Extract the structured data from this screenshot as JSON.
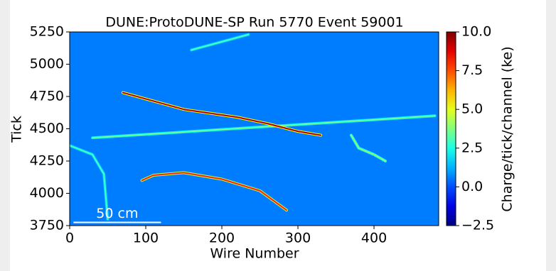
{
  "chart_data": {
    "type": "heatmap",
    "title": "DUNE:ProtoDUNE-SP Run 5770 Event 59001",
    "x_label": "Wire Number",
    "y_label": "Tick",
    "colorbar_label": "Charge/tick/channel (ke)",
    "xlim": [
      0,
      485
    ],
    "xticks": [
      0,
      100,
      200,
      300,
      400
    ],
    "ylim": [
      3750,
      5250
    ],
    "yticks": [
      3750,
      4000,
      4250,
      4500,
      4750,
      5000,
      5250
    ],
    "clim": [
      -2.5,
      10.0
    ],
    "cticks": [
      {
        "value": -2.5,
        "label": "−2.5"
      },
      {
        "value": 0,
        "label": "0.0"
      },
      2.5,
      {
        "value": 5,
        "label": "5.0"
      },
      7.5,
      {
        "value": 10,
        "label": "10.0"
      }
    ],
    "colormap": "jet",
    "background_charge": 0.6,
    "annotation": "50 cm",
    "scale_bar": {
      "x": [
        5,
        120
      ],
      "y": 3775
    },
    "tracks": [
      {
        "x": [
          30,
          480
        ],
        "y": [
          4430,
          4600
        ],
        "charge": 3.5
      },
      {
        "x": [
          160,
          235
        ],
        "y": [
          5110,
          5230
        ],
        "charge": 3.0
      },
      {
        "x": [
          70,
          150,
          220,
          260,
          300,
          330
        ],
        "y": [
          4780,
          4650,
          4590,
          4540,
          4480,
          4450
        ],
        "charge": 9.5
      },
      {
        "x": [
          95,
          110,
          150,
          200,
          250,
          285
        ],
        "y": [
          4100,
          4140,
          4160,
          4110,
          4020,
          3870
        ],
        "charge": 8.0
      },
      {
        "x": [
          0,
          30,
          45,
          50
        ],
        "y": [
          4370,
          4300,
          4150,
          3800
        ],
        "charge": 3.0
      },
      {
        "x": [
          370,
          380,
          400,
          415
        ],
        "y": [
          4450,
          4350,
          4300,
          4250
        ],
        "charge": 4.0
      }
    ]
  }
}
